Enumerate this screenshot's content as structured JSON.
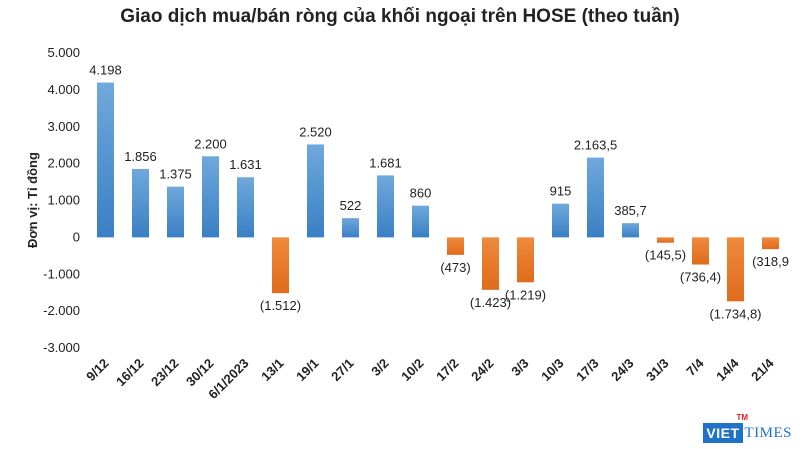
{
  "chart_data": {
    "type": "bar",
    "title": "Giao dịch mua/bán ròng của khối ngoại trên HOSE (theo tuần)",
    "ylabel": "Đơn vị: Tỉ đồng",
    "xlabel": "",
    "ylim": [
      -3000,
      5000
    ],
    "yticks": [
      5000,
      4000,
      3000,
      2000,
      1000,
      0,
      -1000,
      -2000,
      -3000
    ],
    "ytick_labels": [
      "5.000",
      "4.000",
      "3.000",
      "2.000",
      "1.000",
      "0",
      "-1.000",
      "-2.000",
      "-3.000"
    ],
    "categories": [
      "9/12",
      "16/12",
      "23/12",
      "30/12",
      "6/1/2023",
      "13/1",
      "19/1",
      "27/1",
      "3/2",
      "10/2",
      "17/2",
      "24/2",
      "3/3",
      "10/3",
      "17/3",
      "24/3",
      "31/3",
      "7/4",
      "14/4",
      "21/4"
    ],
    "values": [
      4198,
      1856,
      1375,
      2200,
      1631,
      -1512,
      2520,
      522,
      1681,
      860,
      -473,
      -1423,
      -1219,
      915,
      2163.5,
      385.7,
      -145.5,
      -736.4,
      -1734.8,
      -318.9
    ],
    "data_labels": [
      "4.198",
      "1.856",
      "1.375",
      "2.200",
      "1.631",
      "(1.512)",
      "2.520",
      "522",
      "1.681",
      "860",
      "(473)",
      "(1.423)",
      "(1.219)",
      "915",
      "2.163,5",
      "385,7",
      "(145,5)",
      "(736,4)",
      "(1.734,8)",
      "(318,9"
    ],
    "colors": {
      "positive": "#5b9bd5",
      "negative": "#ed7d31"
    },
    "grid": false,
    "legend": "none"
  },
  "logo": {
    "viet": "VIET",
    "times": "TIMES",
    "sup": "TM"
  }
}
